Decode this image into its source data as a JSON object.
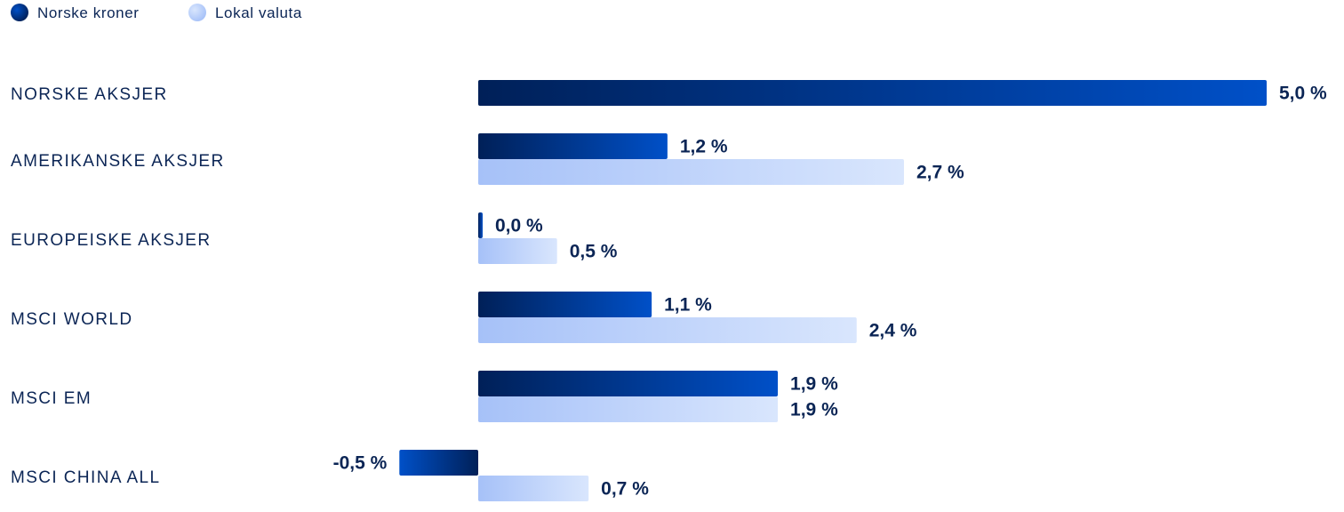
{
  "chart_data": {
    "type": "bar",
    "orientation": "horizontal",
    "categories": [
      "NORSKE AKSJER",
      "AMERIKANSKE AKSJER",
      "EUROPEISKE AKSJER",
      "MSCI WORLD",
      "MSCI EM",
      "MSCI CHINA ALL"
    ],
    "series": [
      {
        "name": "Norske kroner",
        "values": [
          5.0,
          1.2,
          0.0,
          1.1,
          1.9,
          -0.5
        ],
        "labels": [
          "5,0 %",
          "1,2 %",
          "0,0 %",
          "1,1 %",
          "1,9 %",
          "-0,5 %"
        ],
        "color_dark": "#002058",
        "color_light": "#0050c8"
      },
      {
        "name": "Lokal valuta",
        "values": [
          null,
          2.7,
          0.5,
          2.4,
          1.9,
          0.7
        ],
        "labels": [
          null,
          "2,7 %",
          "0,5 %",
          "2,4 %",
          "1,9 %",
          "0,7 %"
        ],
        "color_dark": "#a6c1f8",
        "color_light": "#d9e6fd"
      }
    ],
    "xlim": [
      -0.5,
      5.0
    ],
    "legend": "top-left",
    "grid": false
  }
}
